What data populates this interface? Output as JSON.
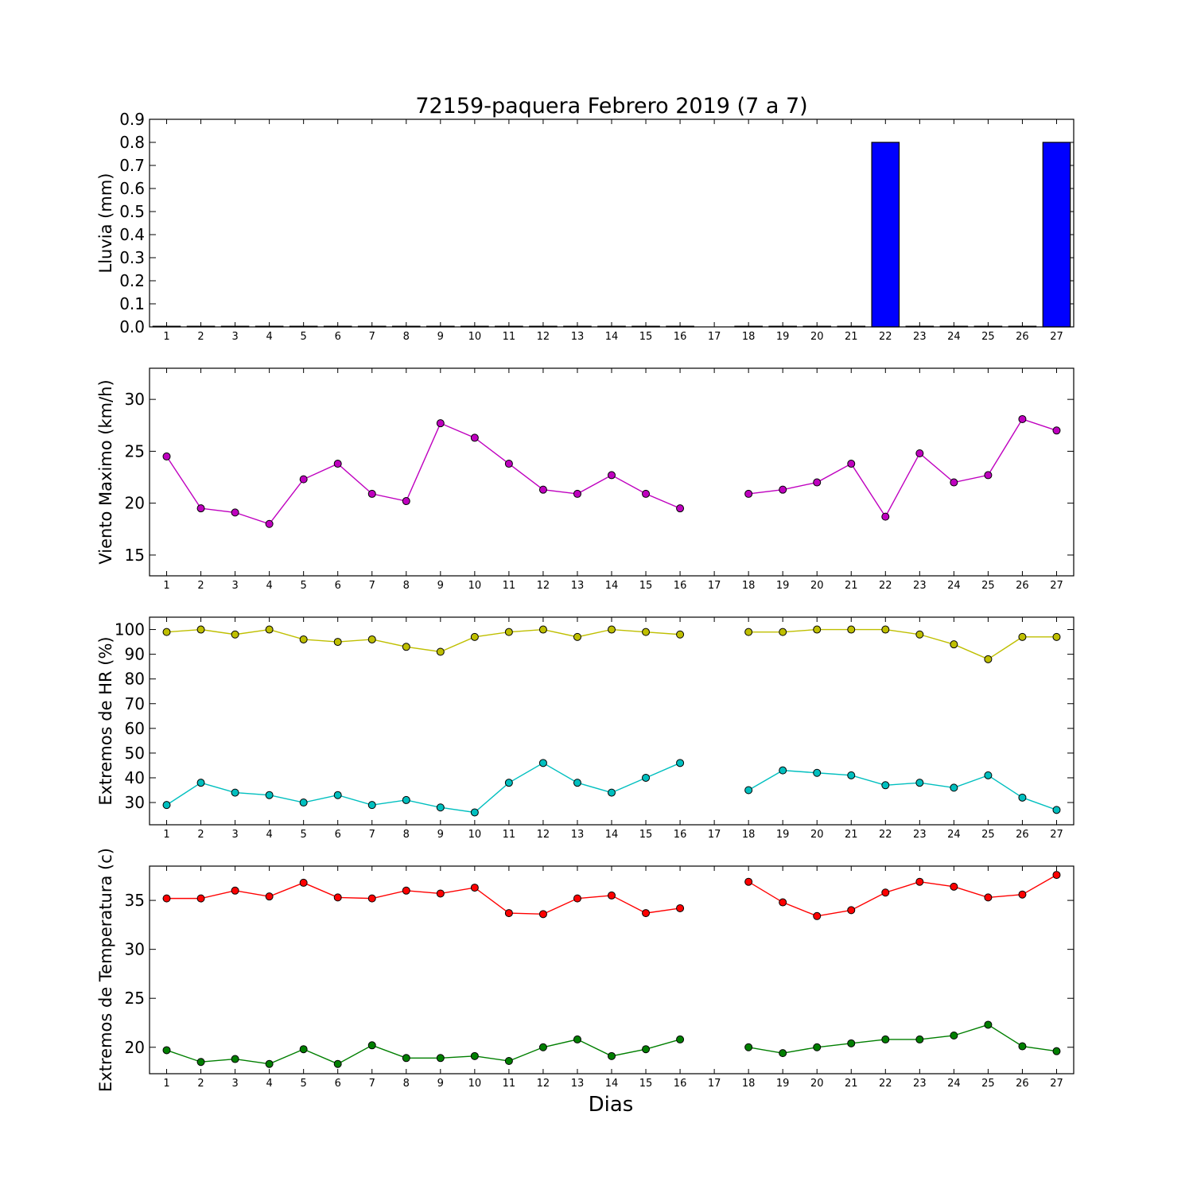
{
  "title": "72159-paquera Febrero 2019  (7 a 7)",
  "xlabel": "Dias",
  "days": [
    "1",
    "2",
    "3",
    "4",
    "5",
    "6",
    "7",
    "8",
    "9",
    "10",
    "11",
    "12",
    "13",
    "14",
    "15",
    "16",
    "17",
    "18",
    "19",
    "20",
    "21",
    "22",
    "23",
    "24",
    "25",
    "26",
    "27"
  ],
  "chart_data": [
    {
      "type": "bar",
      "ylabel": "Lluvia (mm)",
      "ylim": [
        0,
        0.9
      ],
      "yticks": [
        "0.0",
        "0.1",
        "0.2",
        "0.3",
        "0.4",
        "0.5",
        "0.6",
        "0.7",
        "0.8",
        "0.9"
      ],
      "x": [
        1,
        2,
        3,
        4,
        5,
        6,
        7,
        8,
        9,
        10,
        11,
        12,
        13,
        14,
        15,
        16,
        17,
        18,
        19,
        20,
        21,
        22,
        23,
        24,
        25,
        26,
        27
      ],
      "series": [
        {
          "color": "#0000ff",
          "values": [
            0,
            0,
            0,
            0,
            0,
            0,
            0,
            0,
            0,
            0,
            0,
            0,
            0,
            0,
            0,
            0,
            null,
            0,
            0,
            0,
            0,
            0.8,
            0,
            0,
            0,
            0,
            0.8
          ]
        }
      ]
    },
    {
      "type": "line",
      "ylabel": "Viento Maximo (km/h)",
      "ylim": [
        13,
        33
      ],
      "yticks": [
        "15",
        "20",
        "25",
        "30"
      ],
      "x": [
        1,
        2,
        3,
        4,
        5,
        6,
        7,
        8,
        9,
        10,
        11,
        12,
        13,
        14,
        15,
        16,
        17,
        18,
        19,
        20,
        21,
        22,
        23,
        24,
        25,
        26,
        27
      ],
      "series": [
        {
          "color": "#bf00bf",
          "values": [
            24.5,
            19.5,
            19.1,
            18.0,
            22.3,
            23.8,
            20.9,
            20.2,
            27.7,
            26.3,
            23.8,
            21.3,
            20.9,
            22.7,
            20.9,
            19.5,
            null,
            20.9,
            21.3,
            22.0,
            23.8,
            18.7,
            24.8,
            22.0,
            22.7,
            28.1,
            27.0
          ]
        }
      ]
    },
    {
      "type": "line",
      "ylabel": "Extremos de HR (%)",
      "ylim": [
        21,
        105
      ],
      "yticks": [
        "30",
        "40",
        "50",
        "60",
        "70",
        "80",
        "90",
        "100"
      ],
      "x": [
        1,
        2,
        3,
        4,
        5,
        6,
        7,
        8,
        9,
        10,
        11,
        12,
        13,
        14,
        15,
        16,
        17,
        18,
        19,
        20,
        21,
        22,
        23,
        24,
        25,
        26,
        27
      ],
      "series": [
        {
          "color": "#bfbf00",
          "values": [
            99,
            100,
            98,
            100,
            96,
            95,
            96,
            93,
            91,
            97,
            99,
            100,
            97,
            100,
            99,
            98,
            null,
            99,
            99,
            100,
            100,
            100,
            98,
            94,
            88,
            97,
            97
          ]
        },
        {
          "color": "#00bfbf",
          "values": [
            29,
            38,
            34,
            33,
            30,
            33,
            29,
            31,
            28,
            26,
            38,
            46,
            38,
            34,
            40,
            46,
            null,
            35,
            43,
            42,
            41,
            37,
            38,
            36,
            41,
            32,
            27
          ]
        }
      ]
    },
    {
      "type": "line",
      "ylabel": "Extremos de Temperatura (c)",
      "ylim": [
        17.3,
        38.5
      ],
      "yticks": [
        "20",
        "25",
        "30",
        "35"
      ],
      "x": [
        1,
        2,
        3,
        4,
        5,
        6,
        7,
        8,
        9,
        10,
        11,
        12,
        13,
        14,
        15,
        16,
        17,
        18,
        19,
        20,
        21,
        22,
        23,
        24,
        25,
        26,
        27
      ],
      "series": [
        {
          "color": "#ff0000",
          "values": [
            35.2,
            35.2,
            36.0,
            35.4,
            36.8,
            35.3,
            35.2,
            36.0,
            35.7,
            36.3,
            33.7,
            33.6,
            35.2,
            35.5,
            33.7,
            34.2,
            null,
            36.9,
            34.8,
            33.4,
            34.0,
            35.8,
            36.9,
            36.4,
            35.3,
            35.6,
            37.6
          ]
        },
        {
          "color": "#007f00",
          "values": [
            19.7,
            18.5,
            18.8,
            18.3,
            19.8,
            18.3,
            20.2,
            18.9,
            18.9,
            19.1,
            18.6,
            20.0,
            20.8,
            19.1,
            19.8,
            20.8,
            null,
            20.0,
            19.4,
            20.0,
            20.4,
            20.8,
            20.8,
            21.2,
            22.3,
            20.1,
            19.6
          ]
        }
      ]
    }
  ]
}
